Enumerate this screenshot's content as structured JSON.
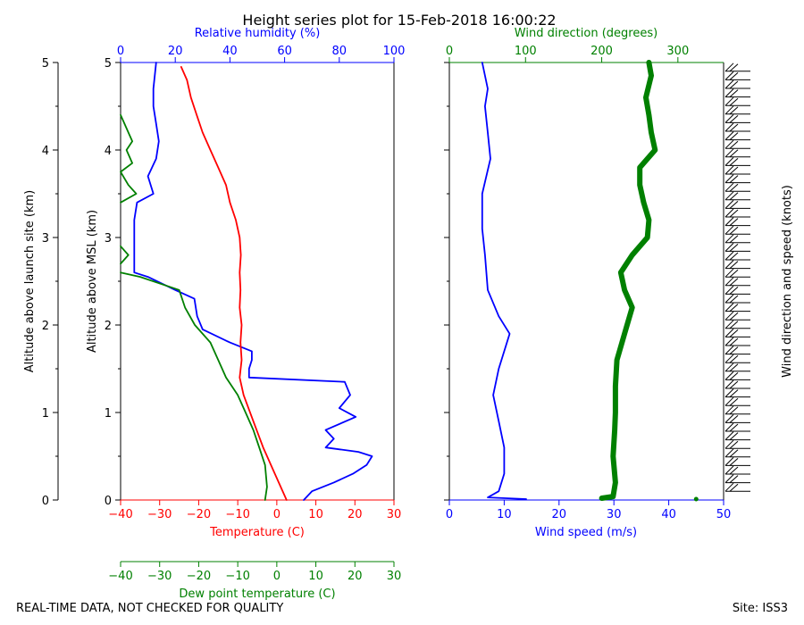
{
  "title": "Height series plot for 15-Feb-2018 16:00:22",
  "footer": {
    "left": "REAL-TIME DATA, NOT CHECKED FOR QUALITY",
    "right": "Site: ISS3"
  },
  "colors": {
    "temp": "#ff0000",
    "rh": "#0000ff",
    "dew": "#008000",
    "wspd": "#0000ff",
    "wdir": "#008000",
    "barb": "#000000"
  },
  "chart_data": [
    {
      "type": "line",
      "panel": "thermo",
      "title": "Height series plot for 15-Feb-2018 16:00:22",
      "axes": {
        "y_left_label": "Altitude above launch site (km)",
        "y_inner_label": "Altitude above MSL (km)",
        "ylim": [
          0,
          5
        ],
        "yticks": [
          "0",
          "1",
          "2",
          "3",
          "4",
          "5"
        ],
        "x_bottom_label": "Temperature (C)",
        "x_bottom_lim": [
          -40,
          30
        ],
        "x_bottom_ticks": [
          "−40",
          "−30",
          "−20",
          "−10",
          "0",
          "10",
          "20",
          "30"
        ],
        "x_top_label": "Relative humidity (%)",
        "x_top_lim": [
          0,
          100
        ],
        "x_top_ticks": [
          "0",
          "20",
          "40",
          "60",
          "80",
          "100"
        ],
        "x_dew_label": "Dew point temperature (C)",
        "x_dew_lim": [
          -40,
          30
        ],
        "x_dew_ticks": [
          "−40",
          "−30",
          "−20",
          "−10",
          "0",
          "10",
          "20",
          "30"
        ]
      },
      "series": [
        {
          "name": "Temperature",
          "units": "C",
          "points": [
            [
              2.5,
              0.0
            ],
            [
              1.0,
              0.15
            ],
            [
              -1.0,
              0.35
            ],
            [
              -3.5,
              0.6
            ],
            [
              -6.0,
              0.9
            ],
            [
              -8.5,
              1.2
            ],
            [
              -9.5,
              1.4
            ],
            [
              -9.0,
              1.6
            ],
            [
              -9.3,
              1.8
            ],
            [
              -9.0,
              2.0
            ],
            [
              -9.5,
              2.2
            ],
            [
              -9.3,
              2.4
            ],
            [
              -9.5,
              2.6
            ],
            [
              -9.2,
              2.8
            ],
            [
              -9.5,
              3.0
            ],
            [
              -10.5,
              3.2
            ],
            [
              -12.0,
              3.4
            ],
            [
              -13.0,
              3.6
            ],
            [
              -15.0,
              3.8
            ],
            [
              -17.0,
              4.0
            ],
            [
              -19.0,
              4.2
            ],
            [
              -20.5,
              4.4
            ],
            [
              -22.0,
              4.6
            ],
            [
              -23.0,
              4.8
            ],
            [
              -24.5,
              4.95
            ]
          ]
        },
        {
          "name": "Relative humidity",
          "units": "%",
          "points": [
            [
              67,
              0.0
            ],
            [
              70,
              0.1
            ],
            [
              78,
              0.2
            ],
            [
              85,
              0.3
            ],
            [
              90,
              0.4
            ],
            [
              92,
              0.5
            ],
            [
              87,
              0.55
            ],
            [
              75,
              0.6
            ],
            [
              78,
              0.7
            ],
            [
              75,
              0.8
            ],
            [
              86,
              0.95
            ],
            [
              80,
              1.05
            ],
            [
              84,
              1.2
            ],
            [
              82,
              1.35
            ],
            [
              47,
              1.4
            ],
            [
              47,
              1.5
            ],
            [
              48,
              1.6
            ],
            [
              48,
              1.7
            ],
            [
              40,
              1.8
            ],
            [
              30,
              1.95
            ],
            [
              28,
              2.1
            ],
            [
              27,
              2.3
            ],
            [
              20,
              2.4
            ],
            [
              10,
              2.55
            ],
            [
              5,
              2.6
            ],
            [
              5,
              2.8
            ],
            [
              5,
              3.0
            ],
            [
              5,
              3.2
            ],
            [
              6,
              3.4
            ],
            [
              12,
              3.5
            ],
            [
              10,
              3.7
            ],
            [
              13,
              3.9
            ],
            [
              14,
              4.1
            ],
            [
              13,
              4.3
            ],
            [
              12,
              4.5
            ],
            [
              12,
              4.7
            ],
            [
              13,
              5.0
            ]
          ]
        },
        {
          "name": "Dew point temperature",
          "units": "C",
          "points": [
            [
              -3.0,
              0.0
            ],
            [
              -2.5,
              0.15
            ],
            [
              -3.0,
              0.4
            ],
            [
              -4.5,
              0.6
            ],
            [
              -6.0,
              0.8
            ],
            [
              -8.0,
              1.0
            ],
            [
              -10.0,
              1.2
            ],
            [
              -13.0,
              1.4
            ],
            [
              -15.0,
              1.6
            ],
            [
              -17.0,
              1.8
            ],
            [
              -21.0,
              2.0
            ],
            [
              -23.5,
              2.2
            ],
            [
              -25.0,
              2.4
            ],
            [
              -35.0,
              2.55
            ],
            [
              -40.0,
              2.6
            ],
            [
              null,
              2.7
            ],
            [
              -40.0,
              2.7
            ],
            [
              -38.0,
              2.8
            ],
            [
              -40.0,
              2.9
            ],
            [
              null,
              3.3
            ],
            [
              -40.0,
              3.4
            ],
            [
              -36.0,
              3.5
            ],
            [
              -38.0,
              3.6
            ],
            [
              -40.0,
              3.75
            ],
            [
              -37.0,
              3.85
            ],
            [
              -38.5,
              4.0
            ],
            [
              -37.0,
              4.1
            ],
            [
              -38.0,
              4.2
            ],
            [
              -39.0,
              4.3
            ],
            [
              -40.0,
              4.4
            ]
          ]
        }
      ]
    },
    {
      "type": "line",
      "panel": "wind",
      "axes": {
        "ylim": [
          0,
          5
        ],
        "x_bottom_label": "Wind speed (m/s)",
        "x_bottom_lim": [
          0,
          50
        ],
        "x_bottom_ticks": [
          "0",
          "10",
          "20",
          "30",
          "40",
          "50"
        ],
        "x_top_label": "Wind direction (degrees)",
        "x_top_lim": [
          0,
          360
        ],
        "x_top_ticks": [
          "0",
          "100",
          "200",
          "300"
        ],
        "barb_label": "Wind direction and speed (knots)"
      },
      "series": [
        {
          "name": "Wind speed",
          "units": "m/s",
          "points": [
            [
              14,
              0.01
            ],
            [
              7,
              0.03
            ],
            [
              9,
              0.1
            ],
            [
              10,
              0.3
            ],
            [
              10,
              0.6
            ],
            [
              9,
              0.9
            ],
            [
              8,
              1.2
            ],
            [
              9,
              1.5
            ],
            [
              11,
              1.9
            ],
            [
              9,
              2.1
            ],
            [
              7,
              2.4
            ],
            [
              6.5,
              2.8
            ],
            [
              6,
              3.1
            ],
            [
              6,
              3.5
            ],
            [
              7.5,
              3.9
            ],
            [
              7,
              4.2
            ],
            [
              6.5,
              4.5
            ],
            [
              7,
              4.7
            ],
            [
              6,
              5.0
            ]
          ]
        },
        {
          "name": "Wind direction",
          "units": "degrees",
          "points": [
            [
              200,
              0.02
            ],
            [
              215,
              0.04
            ],
            [
              218,
              0.2
            ],
            [
              215,
              0.5
            ],
            [
              217,
              0.8
            ],
            [
              218,
              1.0
            ],
            [
              218,
              1.3
            ],
            [
              220,
              1.6
            ],
            [
              230,
              1.9
            ],
            [
              240,
              2.2
            ],
            [
              230,
              2.4
            ],
            [
              225,
              2.6
            ],
            [
              240,
              2.8
            ],
            [
              260,
              3.0
            ],
            [
              262,
              3.2
            ],
            [
              255,
              3.4
            ],
            [
              250,
              3.6
            ],
            [
              250,
              3.8
            ],
            [
              270,
              4.0
            ],
            [
              265,
              4.2
            ],
            [
              262,
              4.4
            ],
            [
              258,
              4.6
            ],
            [
              265,
              4.85
            ],
            [
              262,
              5.0
            ]
          ]
        }
      ],
      "barbs": {
        "count": 50,
        "direction_deg": 270
      }
    }
  ]
}
